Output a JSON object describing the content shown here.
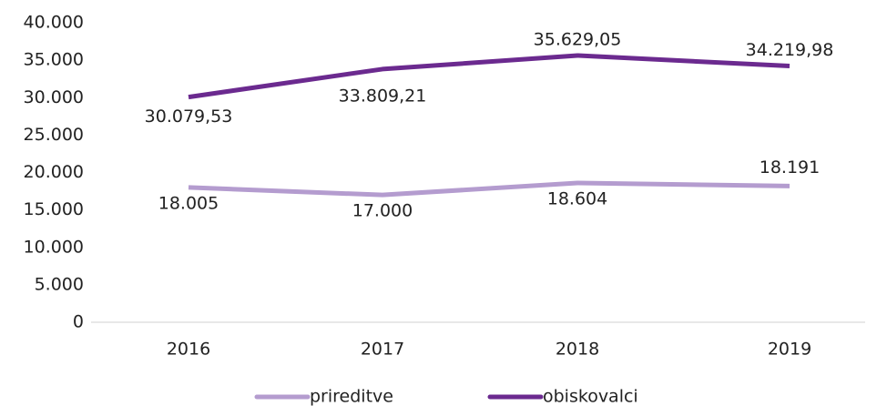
{
  "chart_data": {
    "type": "line",
    "categories": [
      "2016",
      "2017",
      "2018",
      "2019"
    ],
    "series": [
      {
        "name": "prireditve",
        "color": "#b49ccf",
        "values": [
          18005,
          17000,
          18604,
          18191
        ],
        "value_labels": [
          "18.005",
          "17.000",
          "18.604",
          "18.191"
        ]
      },
      {
        "name": "obiskovalci",
        "color": "#6b2a8f",
        "values": [
          30079.53,
          33809.21,
          35629.05,
          34219.98
        ],
        "value_labels": [
          "30.079,53",
          "33.809,21",
          "35.629,05",
          "34.219,98"
        ]
      }
    ],
    "ylim": [
      0,
      40000
    ],
    "yticks": [
      0,
      {
        "value": 5000,
        "label": "5.000"
      },
      {
        "value": 10000,
        "label": "10.000"
      },
      {
        "value": 15000,
        "label": "15.000"
      },
      {
        "value": 20000,
        "label": "20.000"
      },
      {
        "value": 25000,
        "label": "25.000"
      },
      {
        "value": 30000,
        "label": "30.000"
      },
      {
        "value": 35000,
        "label": "35.000"
      },
      {
        "value": 40000,
        "label": "40.000"
      }
    ],
    "grid": false,
    "legend": "bottom"
  }
}
